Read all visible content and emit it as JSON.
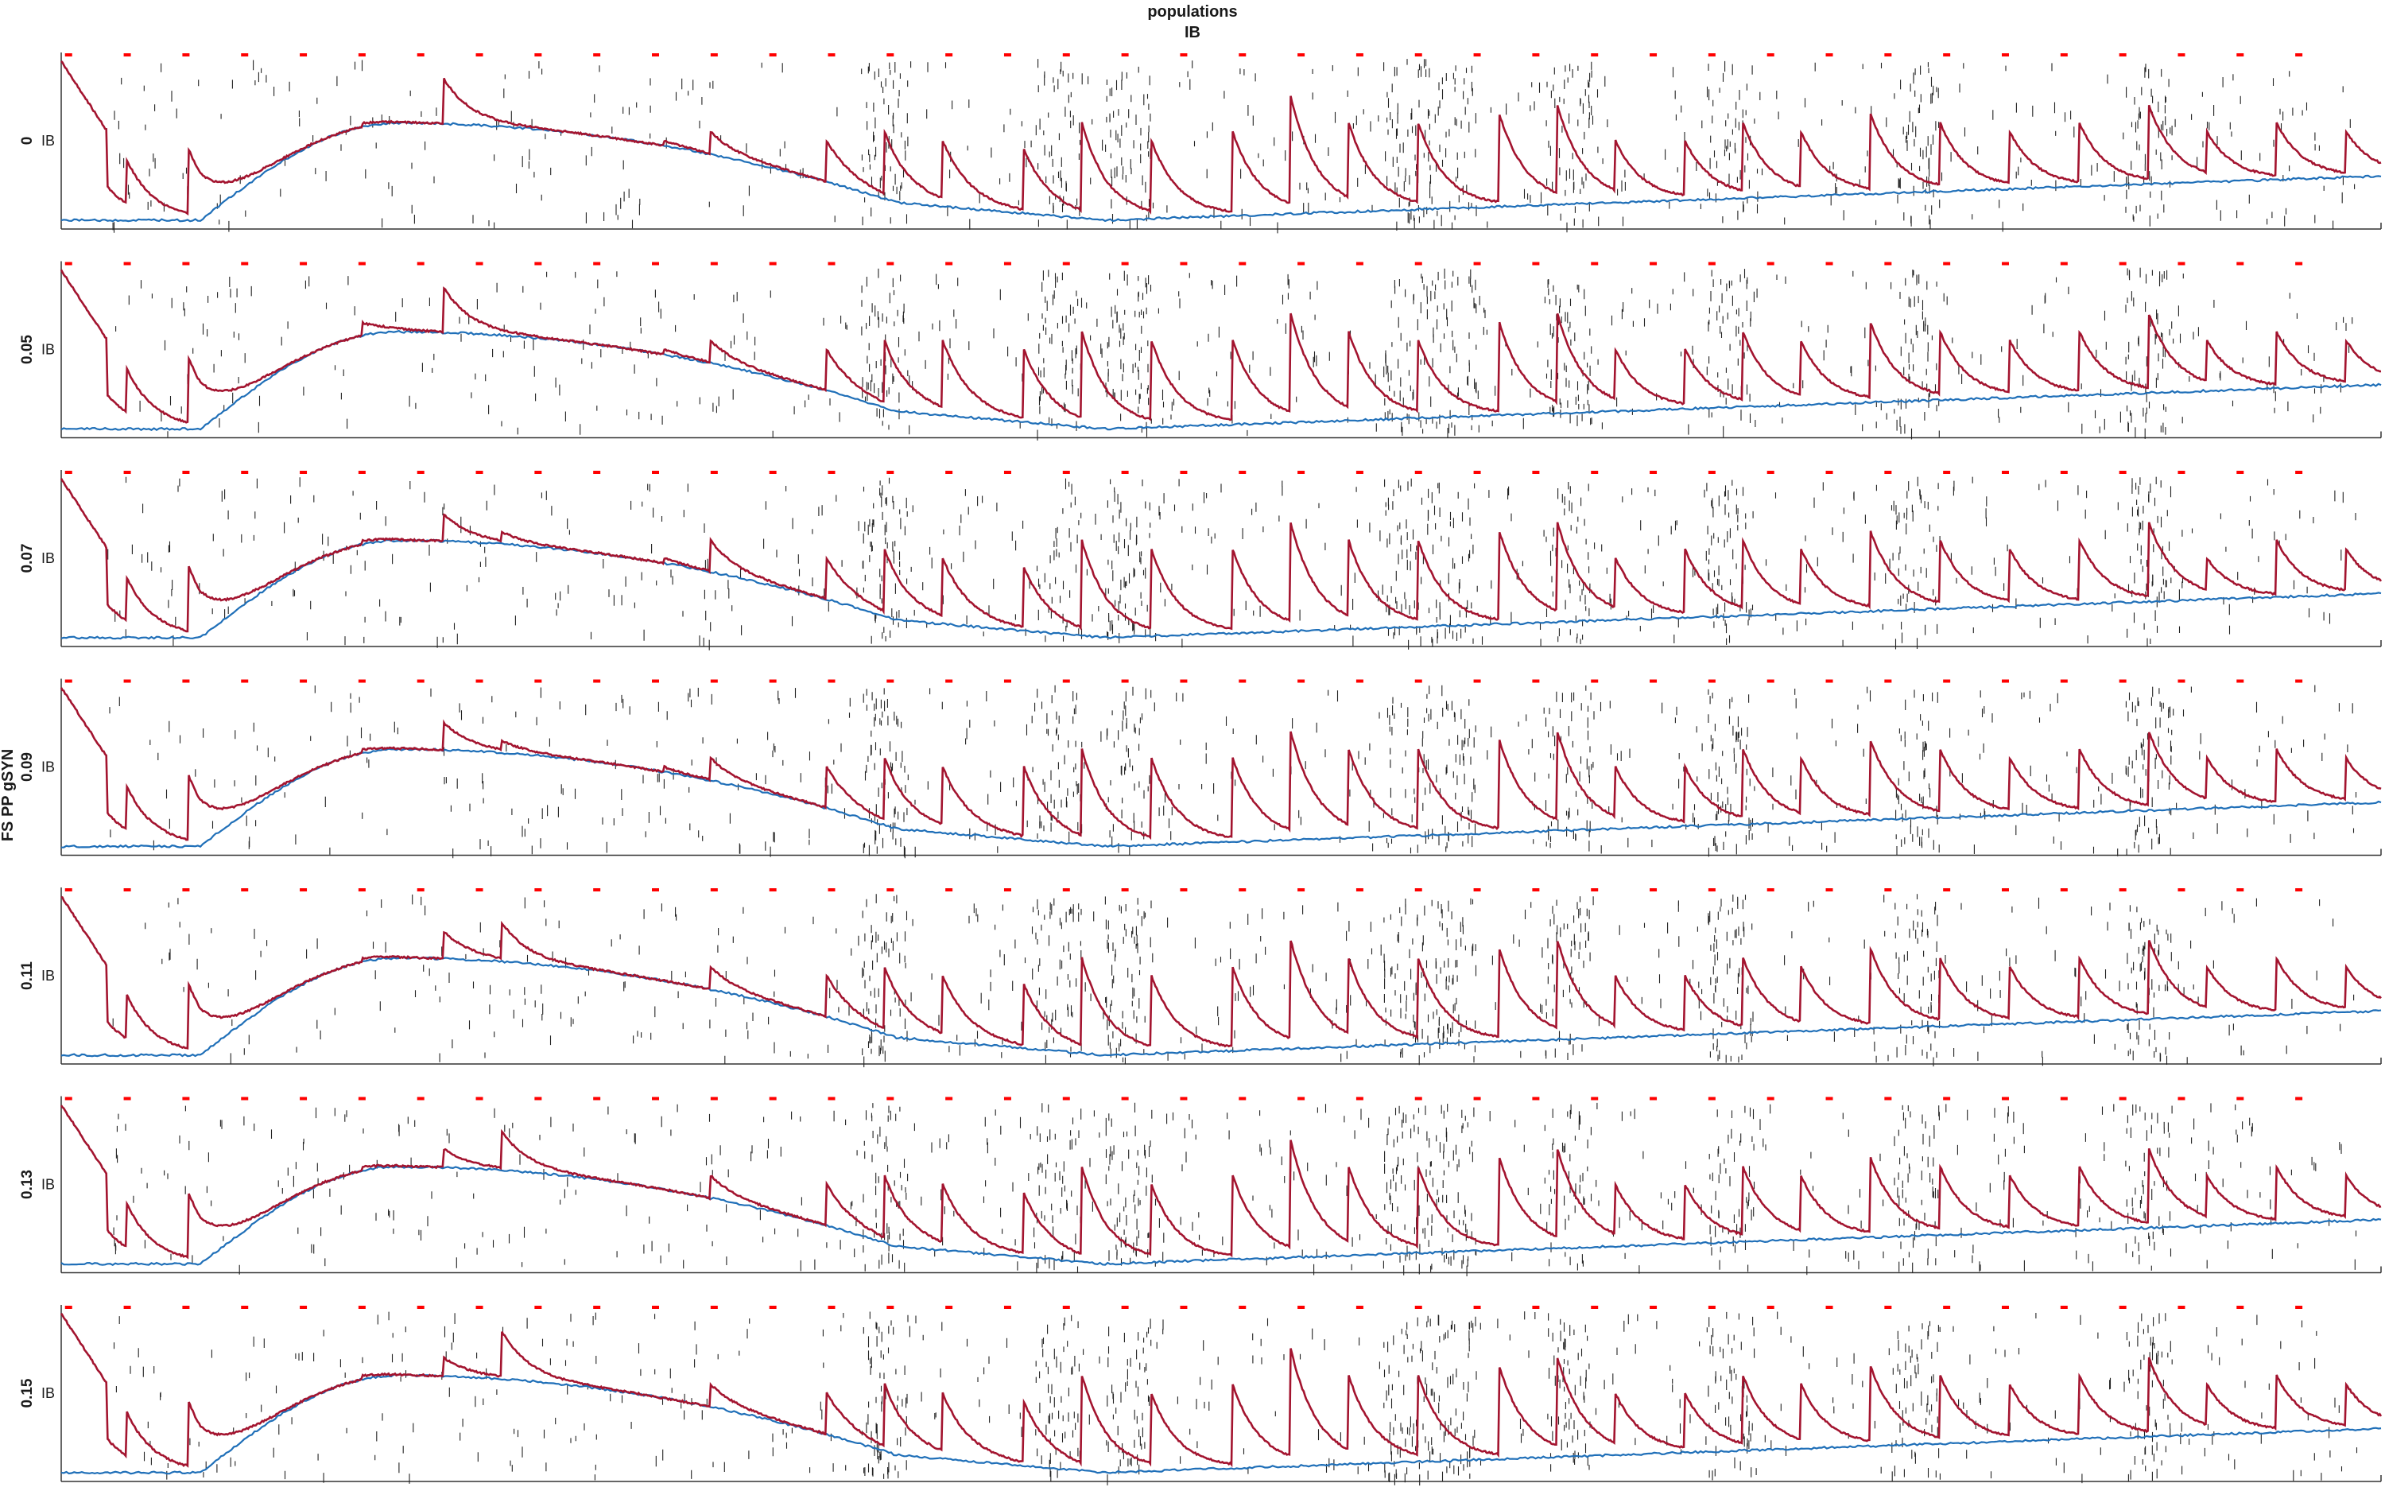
{
  "figure": {
    "title_line1": "populations",
    "title_line2": "IB",
    "ylabel": "FS PP gSYN"
  },
  "colors": {
    "red_trace": "#a3142f",
    "blue_trace": "#1f6fb8",
    "spike_ticks": "#222222",
    "stim_markers": "#ff0000",
    "axes": "#333333"
  },
  "chart_data": {
    "type": "line",
    "description_rows": "seven stacked panels, one per FS PP gSYN value",
    "rows": [
      {
        "value_label": "0",
        "population": "IB",
        "red_peaks": [
          0.9,
          0.4,
          0.45,
          0.6,
          0.85,
          0.55,
          0.5,
          0.55,
          0.5,
          0.55,
          0.5,
          0.45,
          0.6,
          0.5,
          0.55,
          0.75,
          0.6,
          0.6,
          0.65,
          0.7,
          0.5,
          0.5,
          0.6,
          0.55,
          0.65,
          0.6,
          0.55,
          0.6,
          0.7,
          0.55,
          0.6,
          0.55
        ],
        "seed": 11
      },
      {
        "value_label": "0.05",
        "population": "IB",
        "red_peaks": [
          0.9,
          0.4,
          0.45,
          0.65,
          0.85,
          0.6,
          0.5,
          0.55,
          0.5,
          0.55,
          0.55,
          0.5,
          0.6,
          0.55,
          0.55,
          0.7,
          0.6,
          0.55,
          0.65,
          0.7,
          0.5,
          0.5,
          0.6,
          0.55,
          0.65,
          0.6,
          0.55,
          0.6,
          0.7,
          0.55,
          0.6,
          0.55
        ],
        "seed": 23
      },
      {
        "value_label": "0.07",
        "population": "IB",
        "red_peaks": [
          0.9,
          0.4,
          0.45,
          0.6,
          0.75,
          0.65,
          0.5,
          0.6,
          0.5,
          0.55,
          0.5,
          0.45,
          0.6,
          0.55,
          0.55,
          0.7,
          0.6,
          0.6,
          0.65,
          0.7,
          0.5,
          0.55,
          0.6,
          0.55,
          0.65,
          0.6,
          0.55,
          0.6,
          0.7,
          0.5,
          0.6,
          0.55
        ],
        "seed": 37
      },
      {
        "value_label": "0.09",
        "population": "IB",
        "red_peaks": [
          0.9,
          0.4,
          0.45,
          0.6,
          0.75,
          0.65,
          0.5,
          0.55,
          0.5,
          0.55,
          0.5,
          0.5,
          0.6,
          0.55,
          0.55,
          0.7,
          0.6,
          0.6,
          0.65,
          0.7,
          0.5,
          0.5,
          0.6,
          0.55,
          0.65,
          0.6,
          0.55,
          0.6,
          0.7,
          0.55,
          0.6,
          0.55
        ],
        "seed": 41
      },
      {
        "value_label": "0.11",
        "population": "IB",
        "red_peaks": [
          0.9,
          0.4,
          0.45,
          0.6,
          0.75,
          0.8,
          0.45,
          0.55,
          0.5,
          0.55,
          0.5,
          0.45,
          0.6,
          0.5,
          0.55,
          0.7,
          0.6,
          0.6,
          0.65,
          0.7,
          0.5,
          0.5,
          0.6,
          0.55,
          0.65,
          0.6,
          0.55,
          0.6,
          0.7,
          0.55,
          0.6,
          0.55
        ],
        "seed": 53
      },
      {
        "value_label": "0.13",
        "population": "IB",
        "red_peaks": [
          0.9,
          0.4,
          0.45,
          0.6,
          0.7,
          0.8,
          0.45,
          0.55,
          0.5,
          0.55,
          0.5,
          0.45,
          0.6,
          0.5,
          0.55,
          0.75,
          0.6,
          0.6,
          0.65,
          0.7,
          0.5,
          0.5,
          0.6,
          0.55,
          0.65,
          0.6,
          0.55,
          0.6,
          0.7,
          0.55,
          0.6,
          0.55
        ],
        "seed": 67
      },
      {
        "value_label": "0.15",
        "population": "IB",
        "red_peaks": [
          0.9,
          0.4,
          0.45,
          0.6,
          0.7,
          0.85,
          0.45,
          0.55,
          0.5,
          0.55,
          0.5,
          0.45,
          0.6,
          0.5,
          0.55,
          0.75,
          0.6,
          0.6,
          0.65,
          0.7,
          0.5,
          0.5,
          0.6,
          0.55,
          0.65,
          0.6,
          0.55,
          0.6,
          0.7,
          0.55,
          0.6,
          0.55
        ],
        "seed": 79
      }
    ]
  }
}
